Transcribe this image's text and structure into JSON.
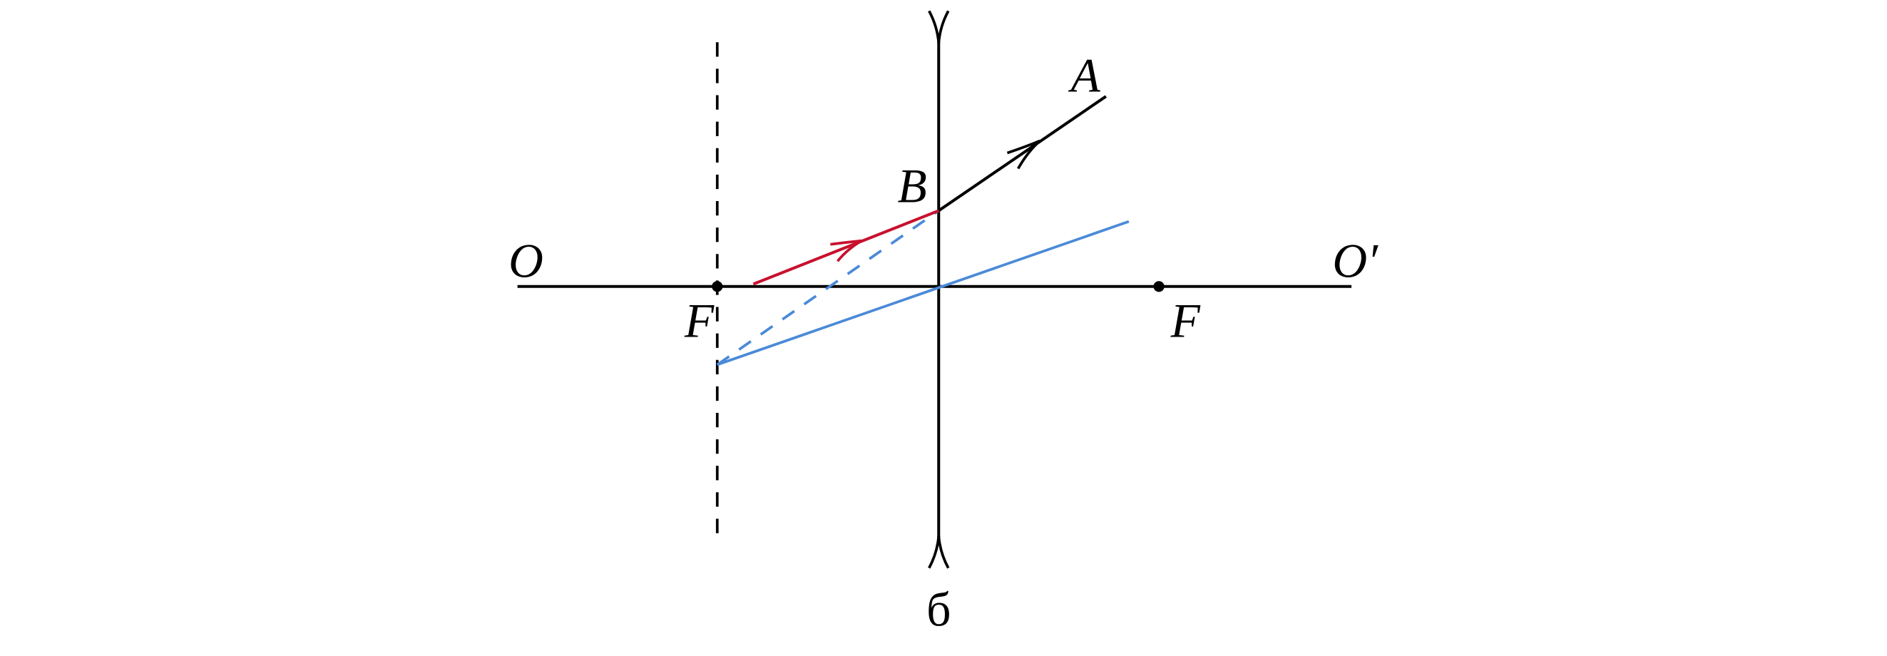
{
  "labels": {
    "axis_left": "O",
    "axis_right": "O′",
    "focus_left": "F",
    "focus_right": "F",
    "point_a": "A",
    "point_b": "B",
    "caption": "б"
  }
}
